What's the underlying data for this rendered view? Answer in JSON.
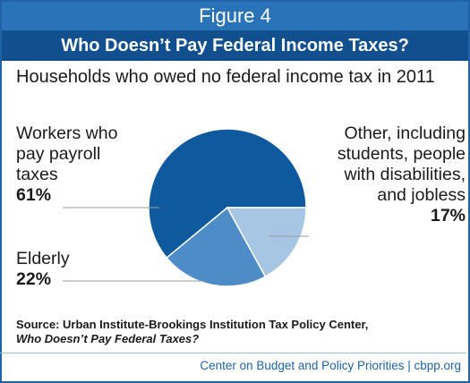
{
  "figure_label": "Figure 4",
  "title": "Who Doesn’t Pay Federal Income Taxes?",
  "subtitle": "Households who owed no federal income tax in 2011",
  "chart_data": {
    "type": "pie",
    "slices": [
      {
        "name_lines": [
          "Workers who",
          "pay payroll",
          "taxes"
        ],
        "value": 61,
        "value_label": "61%",
        "color": "#0f5a9e"
      },
      {
        "name_lines": [
          "Other, including",
          "students, people",
          "with disabilities,",
          "and jobless"
        ],
        "value": 17,
        "value_label": "17%",
        "color": "#a7c6e3"
      },
      {
        "name_lines": [
          "Elderly"
        ],
        "value": 22,
        "value_label": "22%",
        "color": "#4d8cc7"
      }
    ]
  },
  "source": {
    "line1": "Source:  Urban Institute-Brookings Institution Tax Policy Center,",
    "line2": "Who Doesn’t Pay Federal Taxes?"
  },
  "footer": "Center on Budget and Policy Priorities | cbpp.org"
}
